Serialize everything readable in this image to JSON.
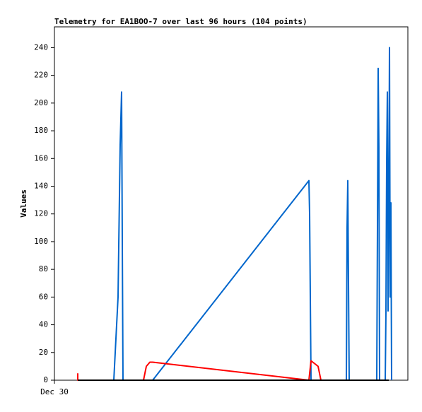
{
  "chart_data": {
    "type": "line",
    "title": "Telemetry for EA1BOO-7 over last 96 hours (104 points)",
    "y_label": "Values",
    "xlim": [
      0,
      100
    ],
    "xticks": [
      {
        "value": 0,
        "label": "Dec 30"
      }
    ],
    "ylim": [
      0,
      255
    ],
    "yticks": [
      0,
      20,
      40,
      60,
      80,
      100,
      120,
      140,
      160,
      180,
      200,
      220,
      240
    ],
    "grid": false,
    "series": [
      {
        "color": "#0066cc",
        "x": [
          16.8,
          18,
          18.6,
          19,
          19.2,
          19.4,
          27.8,
          72,
          72.2,
          72.6,
          82.6,
          82.8,
          83,
          83.2,
          83.4,
          91.2,
          91.4,
          91.6,
          91.8,
          92,
          93.6,
          93.8,
          94,
          94.2,
          94.4,
          94.6,
          94.8,
          95,
          95.2,
          95.4
        ],
        "values": [
          0,
          60,
          170,
          208,
          100,
          0,
          0,
          144,
          120,
          0,
          0,
          110,
          144,
          70,
          0,
          0,
          110,
          225,
          168,
          0,
          0,
          50,
          157,
          208,
          50,
          120,
          240,
          60,
          128,
          0
        ]
      },
      {
        "color": "#ff0000",
        "x": [
          6.6,
          6.6,
          6.8,
          25.2,
          26,
          27,
          27.8,
          72,
          72.6,
          74.6,
          75.4
        ],
        "values": [
          5,
          0,
          0,
          0,
          10,
          13,
          13,
          0,
          14,
          10,
          0
        ]
      },
      {
        "color": "#000000",
        "x": [
          6.6,
          94.6
        ],
        "values": [
          0,
          0
        ]
      }
    ]
  }
}
